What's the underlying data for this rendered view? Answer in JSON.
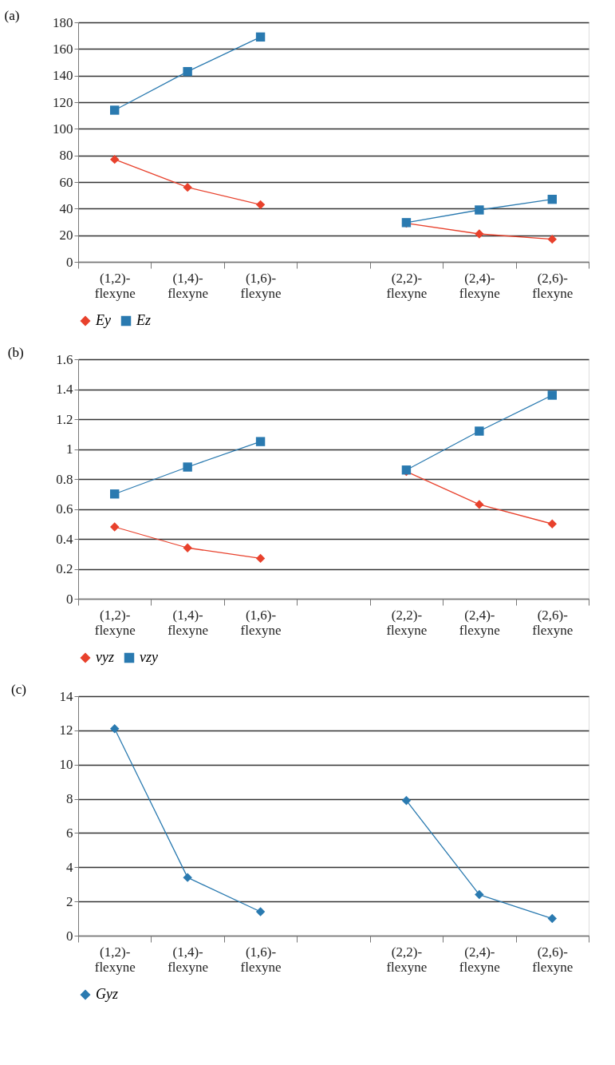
{
  "chart_data": [
    {
      "type": "line",
      "title": "(a)",
      "categories": [
        "(1,2)-\nflexyne",
        "(1,4)-\nflexyne",
        "(1,6)-\nflexyne",
        null,
        "(2,2)-\nflexyne",
        "(2,4)-\nflexyne",
        "(2,6)-\nflexyne"
      ],
      "series": [
        {
          "name": "Ey",
          "color": "#e8412c",
          "marker": "diamond",
          "values": [
            77,
            56,
            43,
            null,
            29,
            21,
            17
          ]
        },
        {
          "name": "Ez",
          "color": "#2a7ab0",
          "marker": "square",
          "values": [
            114,
            143,
            169,
            null,
            29.5,
            39,
            47
          ]
        }
      ],
      "ylim": [
        0,
        180
      ],
      "yticks": [
        0,
        20,
        40,
        60,
        80,
        100,
        120,
        140,
        160,
        180
      ],
      "grid": "y",
      "legend": "bottom",
      "line_style": "solid"
    },
    {
      "type": "line",
      "title": "(b)",
      "categories": [
        "(1,2)-\nflexyne",
        "(1,4)-\nflexyne",
        "(1,6)-\nflexyne",
        null,
        "(2,2)-\nflexyne",
        "(2,4)-\nflexyne",
        "(2,6)-\nflexyne"
      ],
      "series": [
        {
          "name": "νyz",
          "color": "#e8412c",
          "marker": "diamond",
          "values": [
            0.48,
            0.34,
            0.27,
            null,
            0.85,
            0.63,
            0.5
          ]
        },
        {
          "name": "νzy",
          "color": "#2a7ab0",
          "marker": "square",
          "values": [
            0.7,
            0.88,
            1.05,
            null,
            0.86,
            1.12,
            1.36
          ]
        }
      ],
      "ylim": [
        0,
        1.6
      ],
      "yticks": [
        0,
        0.2,
        0.4,
        0.6,
        0.8,
        1,
        1.2,
        1.4,
        1.6
      ],
      "grid": "y",
      "legend": "bottom",
      "line_style": "solid"
    },
    {
      "type": "line",
      "title": "(c)",
      "categories": [
        "(1,2)-\nflexyne",
        "(1,4)-\nflexyne",
        "(1,6)-\nflexyne",
        null,
        "(2,2)-\nflexyne",
        "(2,4)-\nflexyne",
        "(2,6)-\nflexyne"
      ],
      "series": [
        {
          "name": "Gyz",
          "color": "#2a7ab0",
          "marker": "diamond",
          "values": [
            12.1,
            3.4,
            1.4,
            null,
            7.9,
            2.4,
            1.0
          ]
        }
      ],
      "ylim": [
        0,
        14
      ],
      "yticks": [
        0,
        2,
        4,
        6,
        8,
        10,
        12,
        14
      ],
      "grid": "y",
      "legend": "bottom",
      "line_style": "solid"
    }
  ]
}
